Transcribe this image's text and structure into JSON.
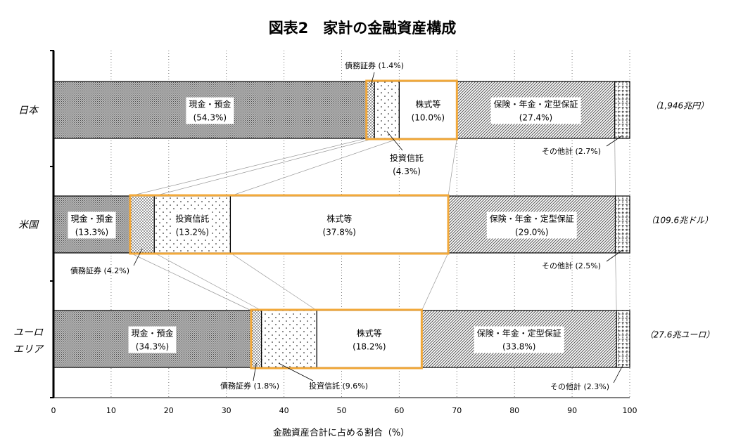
{
  "chart_data": {
    "type": "bar",
    "orientation": "horizontal",
    "stacked": true,
    "title": "図表2　家計の金融資産構成",
    "xlabel": "金融資産合計に占める割合（%）",
    "xlim": [
      0,
      100
    ],
    "xticks": [
      "0",
      "10",
      "20",
      "30",
      "40",
      "50",
      "60",
      "70",
      "80",
      "90",
      "100"
    ],
    "grid": "vertical-dotted",
    "categories": [
      "日本",
      "米国",
      "ユーロ\nエリア"
    ],
    "totals": [
      "（1,946兆円）",
      "（109.6兆ドル）",
      "（27.6兆ユーロ）"
    ],
    "series": [
      {
        "name": "現金・預金",
        "values": [
          54.3,
          13.3,
          34.3
        ],
        "labels": [
          "現金・預金\n(54.3%)",
          "現金・預金\n(13.3%)",
          "現金・預金\n(34.3%)"
        ]
      },
      {
        "name": "債務証券",
        "values": [
          1.4,
          4.2,
          1.8
        ],
        "labels": [
          "債務証券 (1.4%)",
          "債務証券 (4.2%)",
          "債務証券 (1.8%)"
        ]
      },
      {
        "name": "投資信託",
        "values": [
          4.3,
          13.2,
          9.6
        ],
        "labels": [
          "投資信託\n(4.3%)",
          "投資信託\n(13.2%)",
          "投資信託 (9.6%)"
        ]
      },
      {
        "name": "株式等",
        "values": [
          10.0,
          37.8,
          18.2
        ],
        "labels": [
          "株式等\n(10.0%)",
          "株式等\n(37.8%)",
          "株式等\n(18.2%)"
        ]
      },
      {
        "name": "保険・年金・定型保証",
        "values": [
          27.4,
          29.0,
          33.8
        ],
        "labels": [
          "保険・年金・定型保証\n(27.4%)",
          "保険・年金・定型保証\n(29.0%)",
          "保険・年金・定型保証\n(33.8%)"
        ]
      },
      {
        "name": "その他計",
        "values": [
          2.7,
          2.5,
          2.3
        ],
        "labels": [
          "その他計 (2.7%)",
          "その他計 (2.5%)",
          "その他計 (2.3%)"
        ]
      }
    ],
    "highlight_color": "#f2a93b"
  }
}
